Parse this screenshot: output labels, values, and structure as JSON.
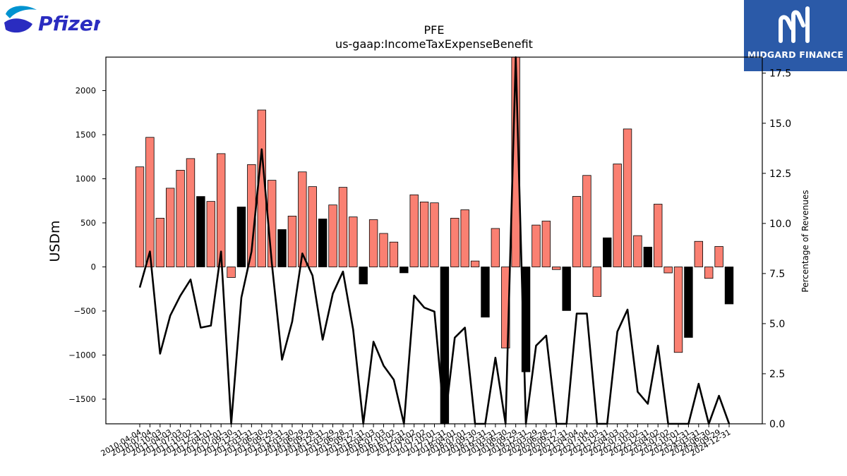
{
  "branding": {
    "left_logo_text": "Pfizer",
    "right_logo_text": "MIDGARD FINANCE",
    "colors": {
      "pfizer_blue": "#0093d0",
      "pfizer_dark": "#2a2cc0",
      "midgard_bg": "#2b5aa8"
    }
  },
  "chart_data": {
    "type": "bar",
    "title": "PFE",
    "subtitle": "us-gaap:IncomeTaxExpenseBenefit",
    "ylabel": "USDm",
    "y2label": "Percentage of Revenues",
    "ylim": [
      -1780,
      2380
    ],
    "y2lim": [
      0.0,
      18.3
    ],
    "yticks": [
      "−1500",
      "−1000",
      "−500",
      "0",
      "500",
      "1000",
      "1500",
      "2000"
    ],
    "ytick_values": [
      -1500,
      -1000,
      -500,
      0,
      500,
      1000,
      1500,
      2000
    ],
    "y2ticks": [
      "0.0",
      "2.5",
      "5.0",
      "7.5",
      "10.0",
      "12.5",
      "15.0",
      "17.5"
    ],
    "y2tick_values": [
      0.0,
      2.5,
      5.0,
      7.5,
      10.0,
      12.5,
      15.0,
      17.5
    ],
    "bar_colors": {
      "annual": "#000000",
      "quarterly": "#fa8072"
    },
    "categories": [
      "2010-04-04",
      "2010-07-04",
      "2010-10-03",
      "2011-04-03",
      "2011-07-03",
      "2011-10-02",
      "2011-12-31",
      "2012-04-01",
      "2012-07-01",
      "2012-09-30",
      "2012-12-31",
      "2013-03-31",
      "2013-06-30",
      "2013-09-29",
      "2013-12-31",
      "2014-03-30",
      "2014-06-29",
      "2014-09-28",
      "2014-12-31",
      "2015-03-29",
      "2015-06-28",
      "2015-09-27",
      "2015-12-31",
      "2016-04-03",
      "2016-07-03",
      "2016-10-02",
      "2016-12-31",
      "2017-04-02",
      "2017-07-02",
      "2017-10-01",
      "2017-12-31",
      "2018-04-01",
      "2018-07-01",
      "2018-09-30",
      "2018-12-31",
      "2019-03-31",
      "2019-06-30",
      "2019-09-29",
      "2019-12-31",
      "2020-03-29",
      "2020-06-28",
      "2020-09-27",
      "2020-12-31",
      "2021-04-04",
      "2021-07-04",
      "2021-10-03",
      "2021-12-31",
      "2022-04-03",
      "2022-07-03",
      "2022-10-02",
      "2022-12-31",
      "2023-04-02",
      "2023-07-02",
      "2023-10-01",
      "2023-12-31",
      "2024-03-31",
      "2024-06-30",
      "2024-09-29",
      "2024-12-31"
    ],
    "tick_labels": [
      "2010-04-04",
      "2010-07-04",
      "2010-10-03",
      "2011-04-03",
      "2011-07-03",
      "2011-10-02",
      "2011-12-31",
      "2012-04-01",
      "2012-07-01",
      "2012-09-30",
      "2012-12-31",
      "2013-03-31",
      "2013-06-30",
      "2013-09-29",
      "2013-12-31",
      "2014-03-30",
      "2014-06-29",
      "2014-09-28",
      "2014-12-31",
      "2015-03-29",
      "2015-06-28",
      "2015-09-27",
      "2015-12-31",
      "2016-04-03",
      "2016-07-03",
      "2016-10-02",
      "2016-12-31",
      "2017-04-02",
      "2017-07-02",
      "2017-10-01",
      "2017-12-31",
      "2018-04-01",
      "2018-07-01",
      "2018-09-30",
      "2018-12-31",
      "2019-03-31",
      "2019-06-30",
      "2019-09-29",
      "2019-12-31",
      "2020-03-29",
      "2020-06-28",
      "2020-09-27",
      "2020-12-31",
      "2021-04-04",
      "2021-07-04",
      "2021-10-03",
      "2021-12-31",
      "2022-04-03",
      "2022-07-03",
      "2022-10-02",
      "2022-12-31",
      "2023-04-02",
      "2023-07-02",
      "2023-10-01",
      "2023-12-31",
      "2024-03-31",
      "2024-06-30",
      "2024-09-29",
      "2024-12-31"
    ],
    "bar_values": [
      1135,
      1470,
      553,
      893,
      1097,
      1229,
      799,
      743,
      1285,
      -120,
      680,
      1161,
      1780,
      983,
      424,
      577,
      1078,
      911,
      544,
      703,
      903,
      567,
      -194,
      536,
      380,
      282,
      -67,
      818,
      737,
      727,
      -1800,
      553,
      648,
      67,
      -570,
      436,
      -920,
      2500,
      -1190,
      475,
      520,
      -30,
      -495,
      800,
      1038,
      -335,
      330,
      1168,
      1565,
      355,
      225,
      712,
      -68,
      -970,
      -800,
      290,
      -130,
      232,
      -420
    ],
    "bar_is_annual": [
      false,
      false,
      false,
      false,
      false,
      false,
      true,
      false,
      false,
      false,
      true,
      false,
      false,
      false,
      true,
      false,
      false,
      false,
      true,
      false,
      false,
      false,
      true,
      false,
      false,
      false,
      true,
      false,
      false,
      false,
      true,
      false,
      false,
      false,
      true,
      false,
      false,
      false,
      true,
      false,
      false,
      false,
      true,
      false,
      false,
      false,
      true,
      false,
      false,
      false,
      true,
      false,
      false,
      false,
      true,
      false,
      false,
      false,
      true
    ],
    "line_series": {
      "name": "",
      "axis": "right",
      "values": [
        6.8,
        8.6,
        3.5,
        5.4,
        6.4,
        7.2,
        4.8,
        4.9,
        8.6,
        0.0,
        6.3,
        8.6,
        13.7,
        8.0,
        3.2,
        5.1,
        8.5,
        7.4,
        4.2,
        6.5,
        7.6,
        4.7,
        0.0,
        4.1,
        2.9,
        2.2,
        0.0,
        6.4,
        5.8,
        5.6,
        0.0,
        4.3,
        4.8,
        0.0,
        0.0,
        3.3,
        0.0,
        18.3,
        0.0,
        3.9,
        4.4,
        0.0,
        0.0,
        5.5,
        5.5,
        0.0,
        0.0,
        4.6,
        5.7,
        1.6,
        1.0,
        3.9,
        0.0,
        0.0,
        0.0,
        2.0,
        0.0,
        1.4,
        0.0
      ]
    }
  }
}
